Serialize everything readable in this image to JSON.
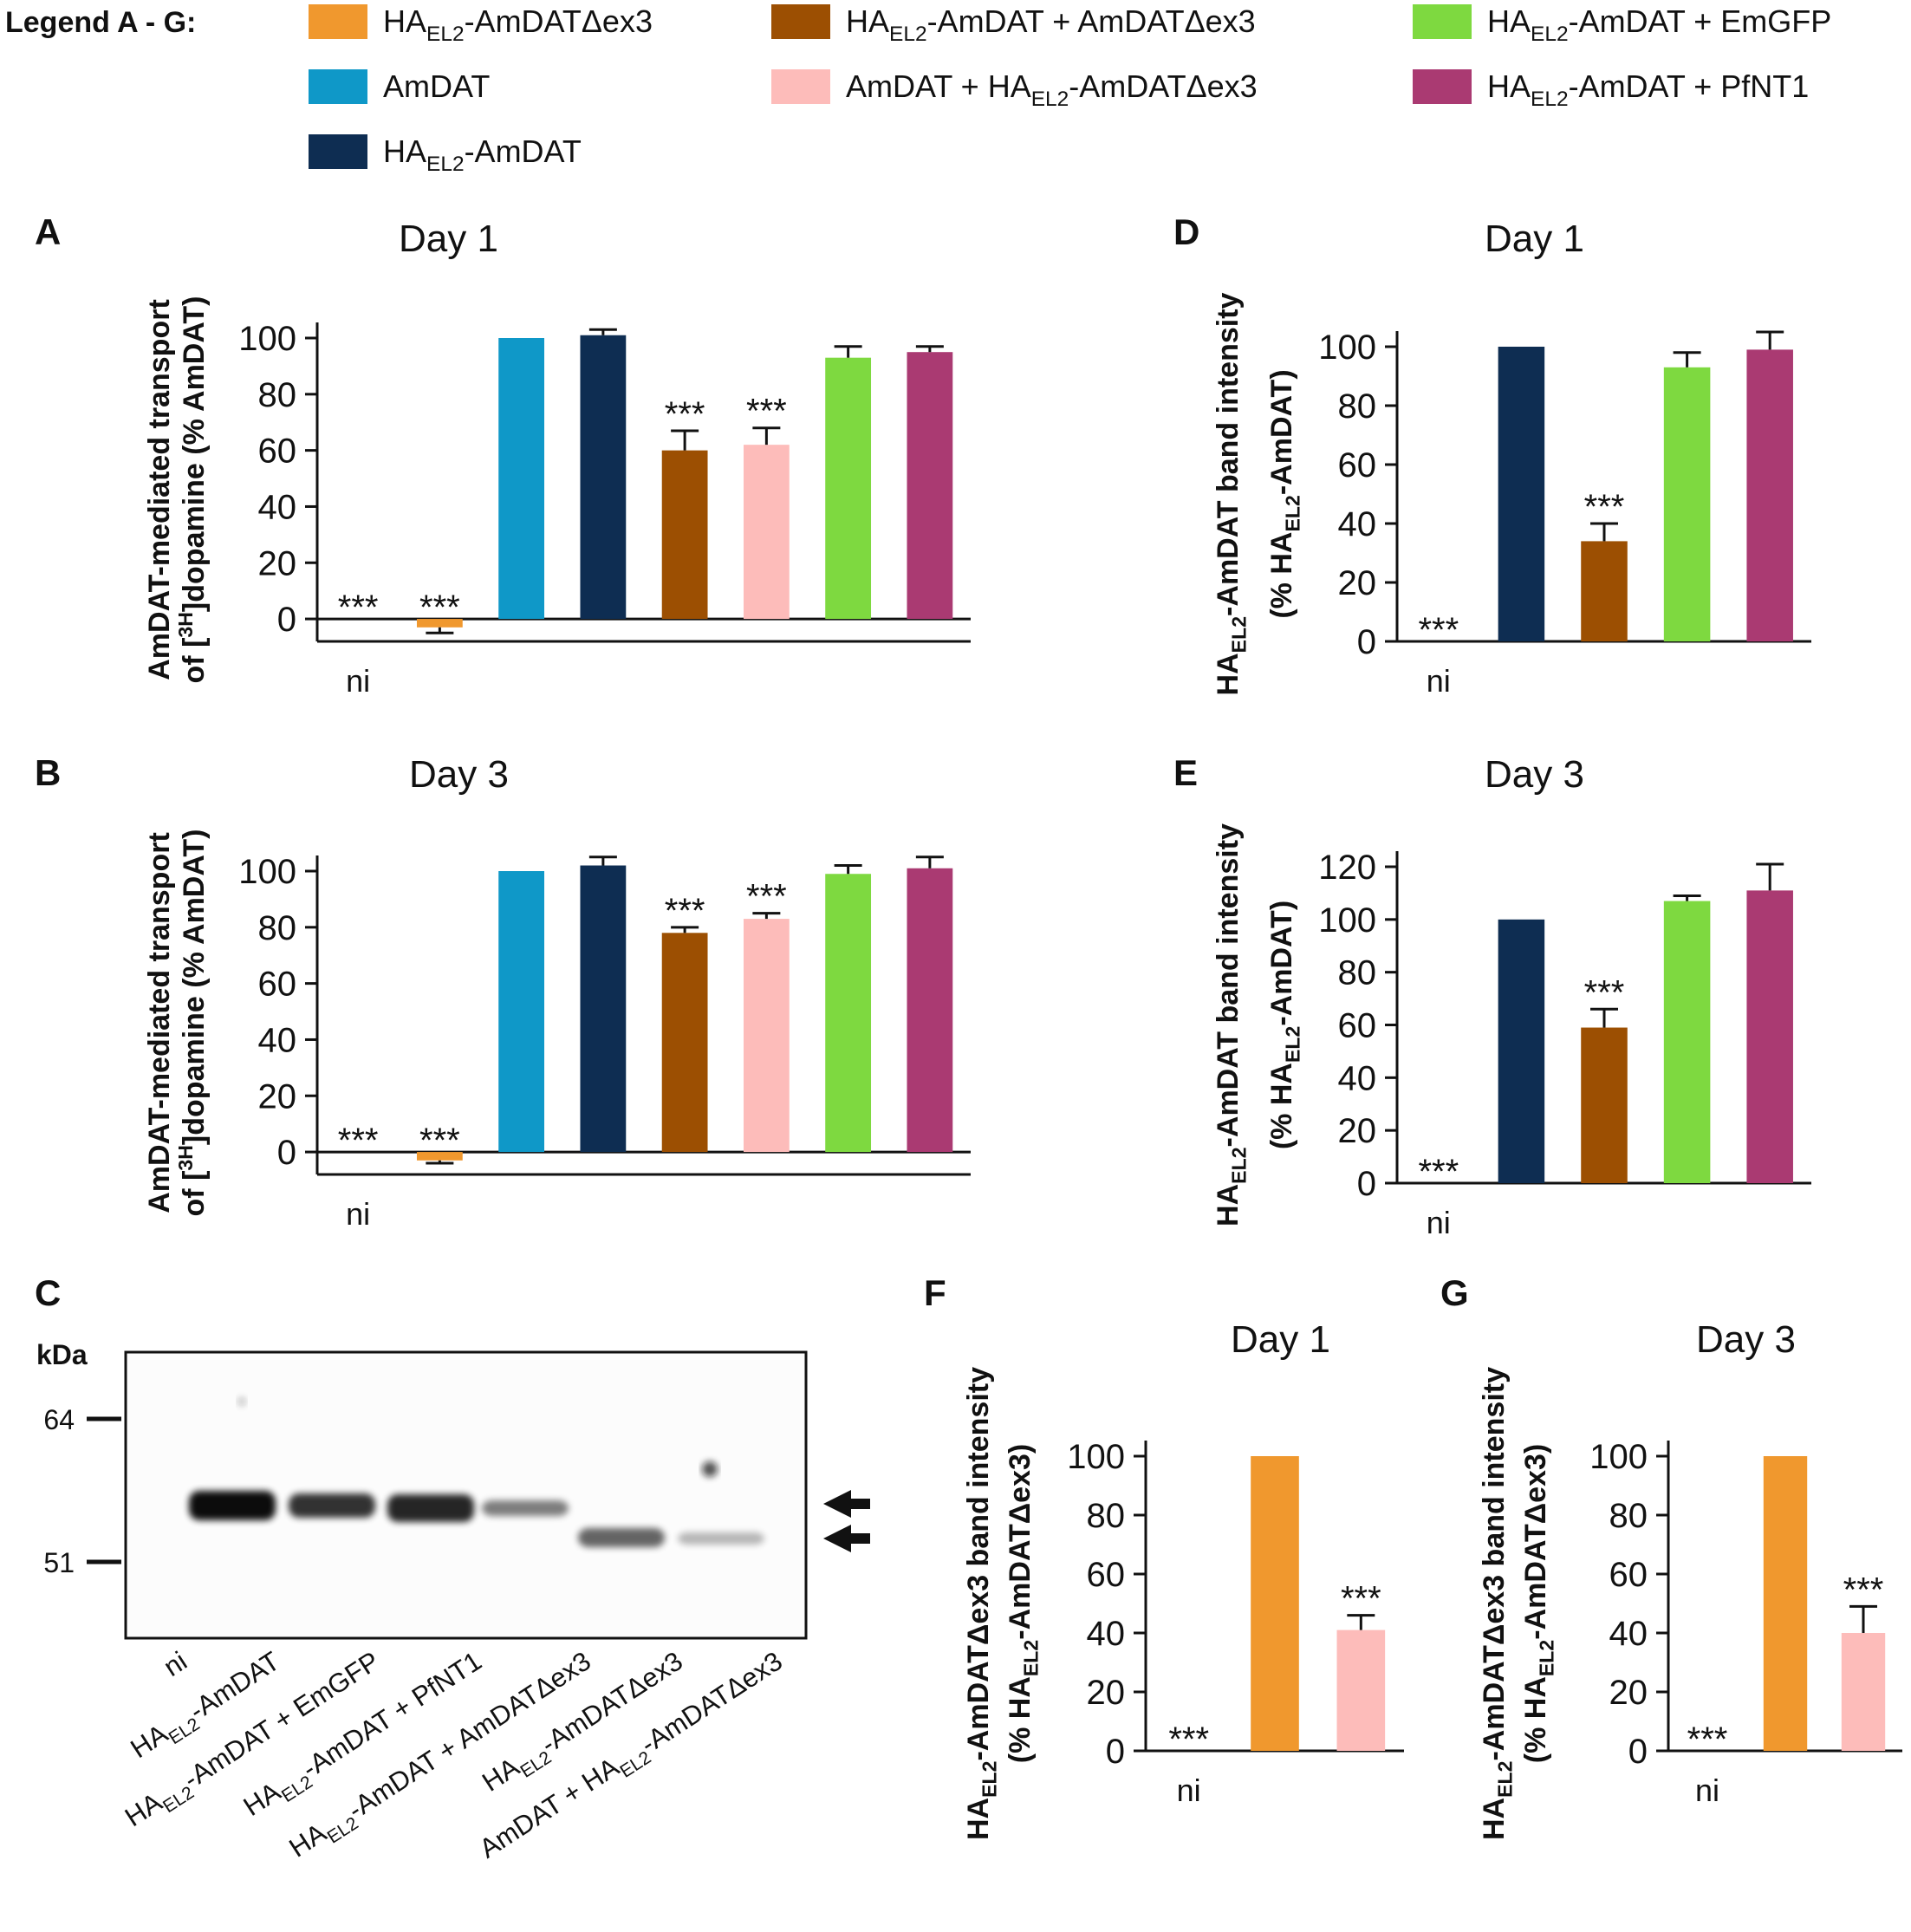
{
  "legend": {
    "title": "Legend A - G:",
    "entries": [
      {
        "key": "s1",
        "label": "HA_EL2-AmDATΔex3",
        "color": "#f0982e"
      },
      {
        "key": "s2",
        "label": "AmDAT",
        "color": "#0f98c8"
      },
      {
        "key": "s3",
        "label": "HA_EL2-AmDAT",
        "color": "#0e2d52"
      },
      {
        "key": "s4",
        "label": "HA_EL2-AmDAT + AmDATΔex3",
        "color": "#9c4f02"
      },
      {
        "key": "s5",
        "label": "AmDAT + HA_EL2-AmDATΔex3",
        "color": "#fdbcba"
      },
      {
        "key": "s6",
        "label": "HA_EL2-AmDAT + EmGFP",
        "color": "#7ed940"
      },
      {
        "key": "s7",
        "label": "HA_EL2-AmDAT + PfNT1",
        "color": "#aa3a72"
      }
    ]
  },
  "chart_data": [
    {
      "panel": "A",
      "type": "bar",
      "title": "Day 1",
      "ylabel": [
        "AmDAT-mediated transport",
        "of [^3H]dopamine (% AmDAT)"
      ],
      "ylim": [
        -8,
        110
      ],
      "yticks": [
        0,
        20,
        40,
        60,
        80,
        100
      ],
      "categories": [
        "ni",
        "HA_EL2-AmDATΔex3",
        "AmDAT",
        "HA_EL2-AmDAT",
        "HA_EL2-AmDAT + AmDATΔex3",
        "AmDAT + HA_EL2-AmDATΔex3",
        "HA_EL2-AmDAT + EmGFP",
        "HA_EL2-AmDAT + PfNT1"
      ],
      "colors": [
        "none",
        "#f0982e",
        "#0f98c8",
        "#0e2d52",
        "#9c4f02",
        "#fdbcba",
        "#7ed940",
        "#aa3a72"
      ],
      "values": [
        0,
        -3,
        100,
        101,
        60,
        62,
        93,
        95
      ],
      "errors": [
        0,
        2,
        0,
        2,
        7,
        6,
        4,
        2
      ],
      "significance": [
        "***",
        "***",
        "",
        "",
        "***",
        "***",
        "",
        ""
      ],
      "xtick_labels": [
        "ni",
        "",
        "",
        "",
        "",
        "",
        "",
        ""
      ]
    },
    {
      "panel": "B",
      "type": "bar",
      "title": "Day 3",
      "ylabel": [
        "AmDAT-mediated transport",
        "of [^3H]dopamine (% AmDAT)"
      ],
      "ylim": [
        -8,
        110
      ],
      "yticks": [
        0,
        20,
        40,
        60,
        80,
        100
      ],
      "categories": [
        "ni",
        "HA_EL2-AmDATΔex3",
        "AmDAT",
        "HA_EL2-AmDAT",
        "HA_EL2-AmDAT + AmDATΔex3",
        "AmDAT + HA_EL2-AmDATΔex3",
        "HA_EL2-AmDAT + EmGFP",
        "HA_EL2-AmDAT + PfNT1"
      ],
      "colors": [
        "none",
        "#f0982e",
        "#0f98c8",
        "#0e2d52",
        "#9c4f02",
        "#fdbcba",
        "#7ed940",
        "#aa3a72"
      ],
      "values": [
        0,
        -3,
        100,
        102,
        78,
        83,
        99,
        101
      ],
      "errors": [
        0,
        1,
        0,
        3,
        2,
        2,
        3,
        4
      ],
      "significance": [
        "***",
        "***",
        "",
        "",
        "***",
        "***",
        "",
        ""
      ],
      "xtick_labels": [
        "ni",
        "",
        "",
        "",
        "",
        "",
        "",
        ""
      ]
    },
    {
      "panel": "D",
      "type": "bar",
      "title": "Day 1",
      "ylabel": [
        "HA_EL2-AmDAT band intensity",
        "(% HA_EL2-AmDAT)"
      ],
      "ylim": [
        0,
        100
      ],
      "yticks": [
        0,
        20,
        40,
        60,
        80,
        100
      ],
      "categories": [
        "ni",
        "HA_EL2-AmDAT",
        "HA_EL2-AmDAT + AmDATΔex3",
        "HA_EL2-AmDAT + EmGFP",
        "HA_EL2-AmDAT + PfNT1"
      ],
      "colors": [
        "none",
        "#0e2d52",
        "#9c4f02",
        "#7ed940",
        "#aa3a72"
      ],
      "values": [
        0,
        100,
        34,
        93,
        99
      ],
      "errors": [
        0,
        0,
        6,
        5,
        6
      ],
      "significance": [
        "***",
        "",
        "***",
        "",
        ""
      ],
      "xtick_labels": [
        "ni",
        "",
        "",
        "",
        ""
      ]
    },
    {
      "panel": "E",
      "type": "bar",
      "title": "Day 3",
      "ylabel": [
        "HA_EL2-AmDAT band intensity",
        "(% HA_EL2-AmDAT)"
      ],
      "ylim": [
        0,
        120
      ],
      "yticks": [
        0,
        20,
        40,
        60,
        80,
        100,
        120
      ],
      "categories": [
        "ni",
        "HA_EL2-AmDAT",
        "HA_EL2-AmDAT + AmDATΔex3",
        "HA_EL2-AmDAT + EmGFP",
        "HA_EL2-AmDAT + PfNT1"
      ],
      "colors": [
        "none",
        "#0e2d52",
        "#9c4f02",
        "#7ed940",
        "#aa3a72"
      ],
      "values": [
        0,
        100,
        59,
        107,
        111
      ],
      "errors": [
        0,
        0,
        7,
        2,
        10
      ],
      "significance": [
        "***",
        "",
        "***",
        "",
        ""
      ],
      "xtick_labels": [
        "ni",
        "",
        "",
        "",
        ""
      ]
    },
    {
      "panel": "F",
      "type": "bar",
      "title": "Day 1",
      "ylabel": [
        "HA_EL2-AmDATΔex3 band intensity",
        "(% HA_EL2-AmDATΔex3)"
      ],
      "ylim": [
        0,
        100
      ],
      "yticks": [
        0,
        20,
        40,
        60,
        80,
        100
      ],
      "categories": [
        "ni",
        "HA_EL2-AmDATΔex3",
        "AmDAT + HA_EL2-AmDATΔex3"
      ],
      "colors": [
        "none",
        "#f0982e",
        "#fdbcba"
      ],
      "values": [
        0,
        100,
        41
      ],
      "errors": [
        0,
        0,
        5
      ],
      "significance": [
        "***",
        "",
        "***"
      ],
      "xtick_labels": [
        "ni",
        "",
        ""
      ]
    },
    {
      "panel": "G",
      "type": "bar",
      "title": "Day 3",
      "ylabel": [
        "HA_EL2-AmDATΔex3 band intensity",
        "(% HA_EL2-AmDATΔex3)"
      ],
      "ylim": [
        0,
        100
      ],
      "yticks": [
        0,
        20,
        40,
        60,
        80,
        100
      ],
      "categories": [
        "ni",
        "HA_EL2-AmDATΔex3",
        "AmDAT + HA_EL2-AmDATΔex3"
      ],
      "colors": [
        "none",
        "#f0982e",
        "#fdbcba"
      ],
      "values": [
        0,
        100,
        40
      ],
      "errors": [
        0,
        0,
        9
      ],
      "significance": [
        "***",
        "",
        "***"
      ],
      "xtick_labels": [
        "ni",
        "",
        ""
      ]
    }
  ],
  "western_blot": {
    "panel": "C",
    "unit_label": "kDa",
    "markers": [
      "64",
      "51"
    ],
    "lanes": [
      "ni",
      "HA_EL2-AmDAT",
      "HA_EL2-AmDAT + EmGFP",
      "HA_EL2-AmDAT + PfNT1",
      "HA_EL2-AmDAT + AmDATΔex3",
      "HA_EL2-AmDATΔex3",
      "AmDAT + HA_EL2-AmDATΔex3"
    ]
  }
}
